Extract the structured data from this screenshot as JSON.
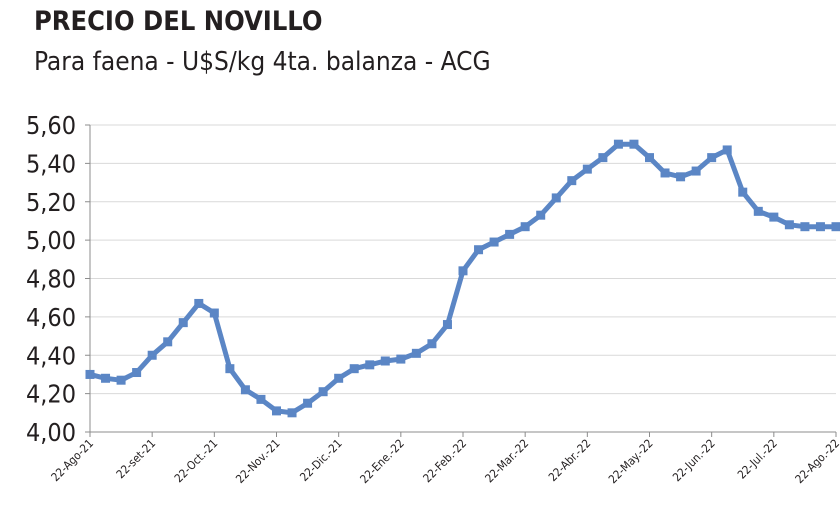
{
  "chart_data": {
    "type": "line",
    "title": "PRECIO DEL NOVILLO",
    "subtitle": "Para faena - U$S/kg 4ta. balanza - ACG",
    "categories": [
      "22-Ago-21",
      null,
      null,
      null,
      "22-set-21",
      null,
      null,
      null,
      "22-Oct.-21",
      null,
      null,
      null,
      "22-Nov.-21",
      null,
      null,
      null,
      "22-Dic.-21",
      null,
      null,
      null,
      "22-Ene.-22",
      null,
      null,
      null,
      "22-Feb.-22",
      null,
      null,
      null,
      "22-Mar.-22",
      null,
      null,
      null,
      "22-Abr.-22",
      null,
      null,
      null,
      "22-May.-22",
      null,
      null,
      null,
      "22-Jun.-22",
      null,
      null,
      null,
      "22-Jul.-22",
      null,
      null,
      null,
      "22-Ago.-22"
    ],
    "series": [
      {
        "color": "#5b86c5",
        "values": [
          4.3,
          4.28,
          4.27,
          4.31,
          4.4,
          4.47,
          4.57,
          4.67,
          4.62,
          4.33,
          4.22,
          4.17,
          4.11,
          4.1,
          4.15,
          4.21,
          4.28,
          4.33,
          4.35,
          4.37,
          4.38,
          4.41,
          4.46,
          4.56,
          4.84,
          4.95,
          4.99,
          5.03,
          5.07,
          5.13,
          5.22,
          5.31,
          5.37,
          5.43,
          5.5,
          5.5,
          5.43,
          5.35,
          5.33,
          5.36,
          5.43,
          5.47,
          5.25,
          5.15,
          5.12,
          5.08,
          5.07,
          5.07,
          5.07
        ]
      }
    ],
    "ylim": [
      4.0,
      5.6
    ],
    "yticks": [
      {
        "value": 4.0,
        "label": "4,00"
      },
      {
        "value": 4.2,
        "label": "4,20"
      },
      {
        "value": 4.4,
        "label": "4,40"
      },
      {
        "value": 4.6,
        "label": "4,60"
      },
      {
        "value": 4.8,
        "label": "4,80"
      },
      {
        "value": 5.0,
        "label": "5,00"
      },
      {
        "value": 5.2,
        "label": "5,20"
      },
      {
        "value": 5.4,
        "label": "5,40"
      },
      {
        "value": 5.6,
        "label": "5,60"
      }
    ],
    "grid": true
  }
}
